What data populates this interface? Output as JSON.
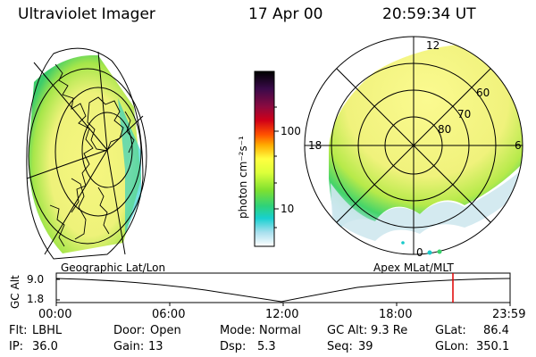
{
  "header": {
    "title": "Ultraviolet Imager",
    "date": "17 Apr 00",
    "time": "20:59:34 UT"
  },
  "colorbar": {
    "unit_label": "photon cm⁻²s⁻¹",
    "tick_100": "100",
    "tick_10": "10",
    "stops": [
      "#000000",
      "#1a0b3b",
      "#7a0a4a",
      "#c80018",
      "#ff2a00",
      "#ff7a00",
      "#ffc800",
      "#ffff40",
      "#e8ff3a",
      "#9be625",
      "#38d46a",
      "#18d0d0",
      "#6ad8f0",
      "#cfe8f0",
      "#ffffff"
    ]
  },
  "apex_map": {
    "lat_labels": [
      "60",
      "70",
      "80"
    ],
    "mlt_labels": {
      "top": "12",
      "left": "18",
      "right": "6",
      "bottom": "0"
    }
  },
  "timeline": {
    "y_axis_label": "GC Alt",
    "y_ticks": [
      "9.0",
      "1.8"
    ],
    "left_title": "Geographic Lat/Lon",
    "right_title": "Apex  MLat/MLT",
    "x_ticks": [
      "00:00",
      "06:00",
      "12:00",
      "18:00",
      "23:59"
    ],
    "marker_time": "20:59:34"
  },
  "info": {
    "row1": [
      {
        "label": "Flt:",
        "value": "LBHL"
      },
      {
        "label": "Door:",
        "value": "Open"
      },
      {
        "label": "Mode:",
        "value": "Normal"
      },
      {
        "label": "GC Alt:",
        "value": "9.3 Re"
      },
      {
        "label": "GLat:",
        "value": "86.4"
      }
    ],
    "row2": [
      {
        "label": "IP:",
        "value": "36.0"
      },
      {
        "label": "Gain:",
        "value": "13"
      },
      {
        "label": "Dsp:",
        "value": "5.3"
      },
      {
        "label": "Seq:",
        "value": "39"
      },
      {
        "label": "GLon:",
        "value": "350.1"
      }
    ]
  },
  "colors": {
    "marker": "#e00000",
    "aurora_fill": "#f0f070",
    "aurora_edge": "#22cc66"
  }
}
